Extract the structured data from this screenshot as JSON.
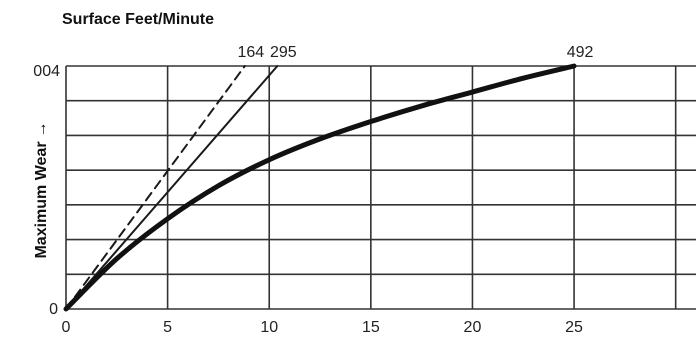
{
  "chart_data": {
    "type": "line",
    "title": "Surface Feet/Minute",
    "xlabel": "",
    "ylabel": "Maximum Wear",
    "ylabel_arrow": "→",
    "x_ticks": [
      "0",
      "5",
      "10",
      "15",
      "20",
      "25"
    ],
    "y_ticks": [
      "0",
      "004"
    ],
    "xlim": [
      0,
      31
    ],
    "ylim": [
      0,
      7
    ],
    "grid": true,
    "series": [
      {
        "name": "164",
        "style": "dashed",
        "color": "#1a1a1a",
        "width": 2,
        "x": [
          0,
          8.8
        ],
        "y": [
          0,
          7
        ]
      },
      {
        "name": "295",
        "style": "solid",
        "color": "#1a1a1a",
        "width": 2,
        "x": [
          0,
          10.4
        ],
        "y": [
          0,
          7
        ]
      },
      {
        "name": "492",
        "style": "solid",
        "color": "#111111",
        "width": 5,
        "x": [
          0,
          2.5,
          5,
          7.5,
          10,
          12.5,
          15,
          17.5,
          20,
          22.5,
          25
        ],
        "y": [
          0,
          1.45,
          2.6,
          3.55,
          4.3,
          4.9,
          5.4,
          5.85,
          6.25,
          6.65,
          7
        ]
      }
    ]
  }
}
